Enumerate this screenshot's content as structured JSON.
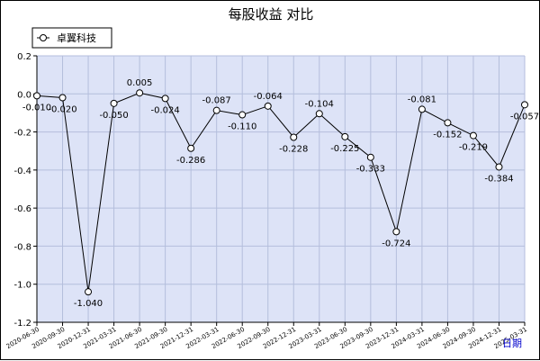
{
  "chart_data": {
    "type": "line",
    "title": "每股收益  对比",
    "xlabel": "日期",
    "ylabel": "",
    "ylim": [
      -1.2,
      0.2
    ],
    "yticks": [
      0.2,
      0.0,
      -0.2,
      -0.4,
      -0.6,
      -0.8,
      -1.0,
      -1.2
    ],
    "grid": true,
    "legend_position": "top-left",
    "plot_background": "#dde3f7",
    "grid_color": "#b4bedc",
    "line_color": "#000000",
    "categories": [
      "2020-06-30",
      "2020-09-30",
      "2020-12-31",
      "2021-03-31",
      "2021-06-30",
      "2021-09-30",
      "2021-12-31",
      "2022-03-31",
      "2022-06-30",
      "2022-09-30",
      "2022-12-31",
      "2023-03-31",
      "2023-06-30",
      "2023-09-30",
      "2023-12-31",
      "2024-03-31",
      "2024-06-30",
      "2024-09-30",
      "2024-12-31",
      "2025-03-31"
    ],
    "series": [
      {
        "name": "卓翼科技",
        "values": [
          -0.01,
          -0.02,
          -1.04,
          -0.05,
          0.005,
          -0.024,
          -0.286,
          -0.087,
          -0.11,
          -0.064,
          -0.228,
          -0.104,
          -0.225,
          -0.333,
          -0.724,
          -0.081,
          -0.152,
          -0.219,
          -0.384,
          -0.057
        ],
        "labels": [
          "-0.010",
          "-0.020",
          "-1.040",
          "-0.050",
          "0.005",
          "-0.024",
          "-0.286",
          "-0.087",
          "-0.110",
          "-0.064",
          "-0.228",
          "-0.104",
          "-0.225",
          "-0.333",
          "-0.724",
          "-0.081",
          "-0.152",
          "-0.219",
          "-0.384",
          "-0.057"
        ]
      }
    ]
  }
}
